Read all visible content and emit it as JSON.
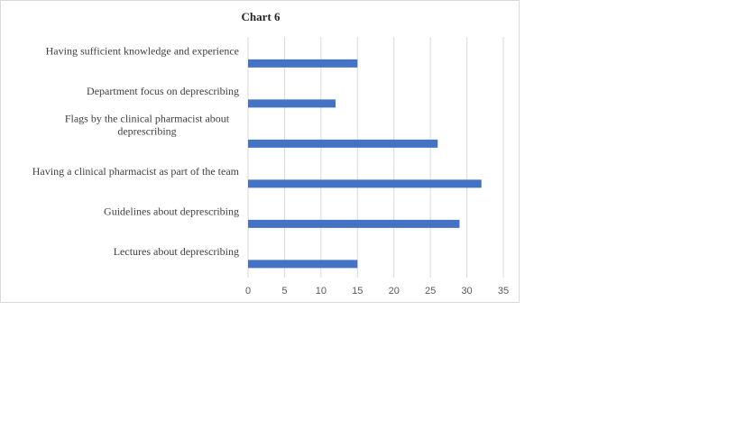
{
  "chart_data": {
    "type": "bar",
    "orientation": "horizontal",
    "title": "Chart 6",
    "categories": [
      [
        "Having sufficient knowledge and experience"
      ],
      [
        "Department focus on deprescribing"
      ],
      [
        "Flags by the clinical pharmacist about",
        "deprescribing"
      ],
      [
        "Having a clinical pharmacist as part of the team"
      ],
      [
        "Guidelines about deprescribing"
      ],
      [
        "Lectures about deprescribing"
      ]
    ],
    "values": [
      15,
      12,
      26,
      32,
      29,
      15
    ],
    "xlim": [
      0,
      35
    ],
    "xticks": [
      0,
      5,
      10,
      15,
      20,
      25,
      30,
      35
    ],
    "xlabel": "",
    "ylabel": "",
    "grid": "vertical",
    "legend": "none",
    "bar_color": "#4472c4",
    "grid_color": "#d9d9d9"
  }
}
